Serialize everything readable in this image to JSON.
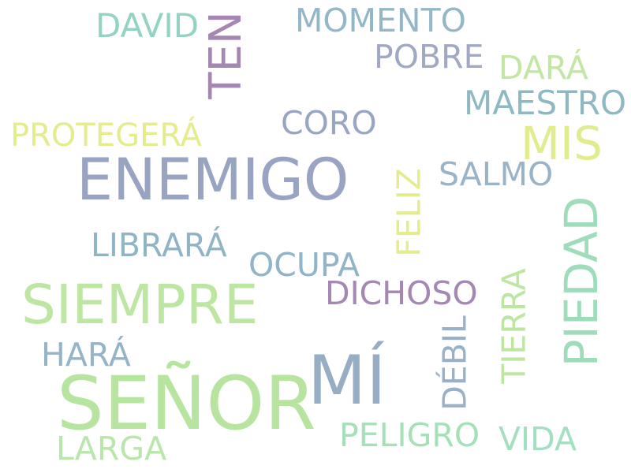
{
  "palette": {
    "blue_gray": "#99a3c2",
    "slate_blue": "#8fb1c4",
    "teal": "#94d3c3",
    "mint": "#a6e0b8",
    "green": "#b7e5a0",
    "yellow": "#e4ec8e",
    "purple": "#a487b3",
    "background": "#ffffff"
  },
  "words": [
    {
      "text": "SEÑOR",
      "color": "#b7e5a0",
      "weight": 1.0
    },
    {
      "text": "MÍ",
      "color": "#96adc4",
      "weight": 0.95
    },
    {
      "text": "ENEMIGO",
      "color": "#99a3c2",
      "weight": 0.75
    },
    {
      "text": "SIEMPRE",
      "color": "#bde6a3",
      "weight": 0.7
    },
    {
      "text": "PIEDAD",
      "color": "#9edcbc",
      "weight": 0.62
    },
    {
      "text": "MIS",
      "color": "#e1ec8f",
      "weight": 0.55
    },
    {
      "text": "TEN",
      "color": "#a487b3",
      "weight": 0.5
    },
    {
      "text": "DICHOSO",
      "color": "#a487b3",
      "weight": 0.4
    },
    {
      "text": "FELIZ",
      "color": "#e4ec8e",
      "weight": 0.4
    },
    {
      "text": "TIERRA",
      "color": "#bde6a3",
      "weight": 0.4
    },
    {
      "text": "MAESTRO",
      "color": "#8fb9c2",
      "weight": 0.4
    },
    {
      "text": "SALMO",
      "color": "#99b3c8",
      "weight": 0.4
    },
    {
      "text": "OCUPA",
      "color": "#90b4c8",
      "weight": 0.4
    },
    {
      "text": "LIBRARÁ",
      "color": "#90b4c4",
      "weight": 0.4
    },
    {
      "text": "CORO",
      "color": "#98a6c4",
      "weight": 0.4
    },
    {
      "text": "PROTEGERÁ",
      "color": "#e4ec8e",
      "weight": 0.38
    },
    {
      "text": "DAVID",
      "color": "#94d3c3",
      "weight": 0.4
    },
    {
      "text": "MOMENTO",
      "color": "#93b7c6",
      "weight": 0.4
    },
    {
      "text": "POBRE",
      "color": "#a0a8c4",
      "weight": 0.4
    },
    {
      "text": "DARÁ",
      "color": "#c3e6a4",
      "weight": 0.4
    },
    {
      "text": "HARÁ",
      "color": "#94b4c8",
      "weight": 0.4
    },
    {
      "text": "DÉBIL",
      "color": "#99b1c8",
      "weight": 0.4
    },
    {
      "text": "PELIGRO",
      "color": "#a6e0b8",
      "weight": 0.4
    },
    {
      "text": "VIDA",
      "color": "#a3dfc0",
      "weight": 0.4
    },
    {
      "text": "LARGA",
      "color": "#b9e6ab",
      "weight": 0.4
    }
  ]
}
